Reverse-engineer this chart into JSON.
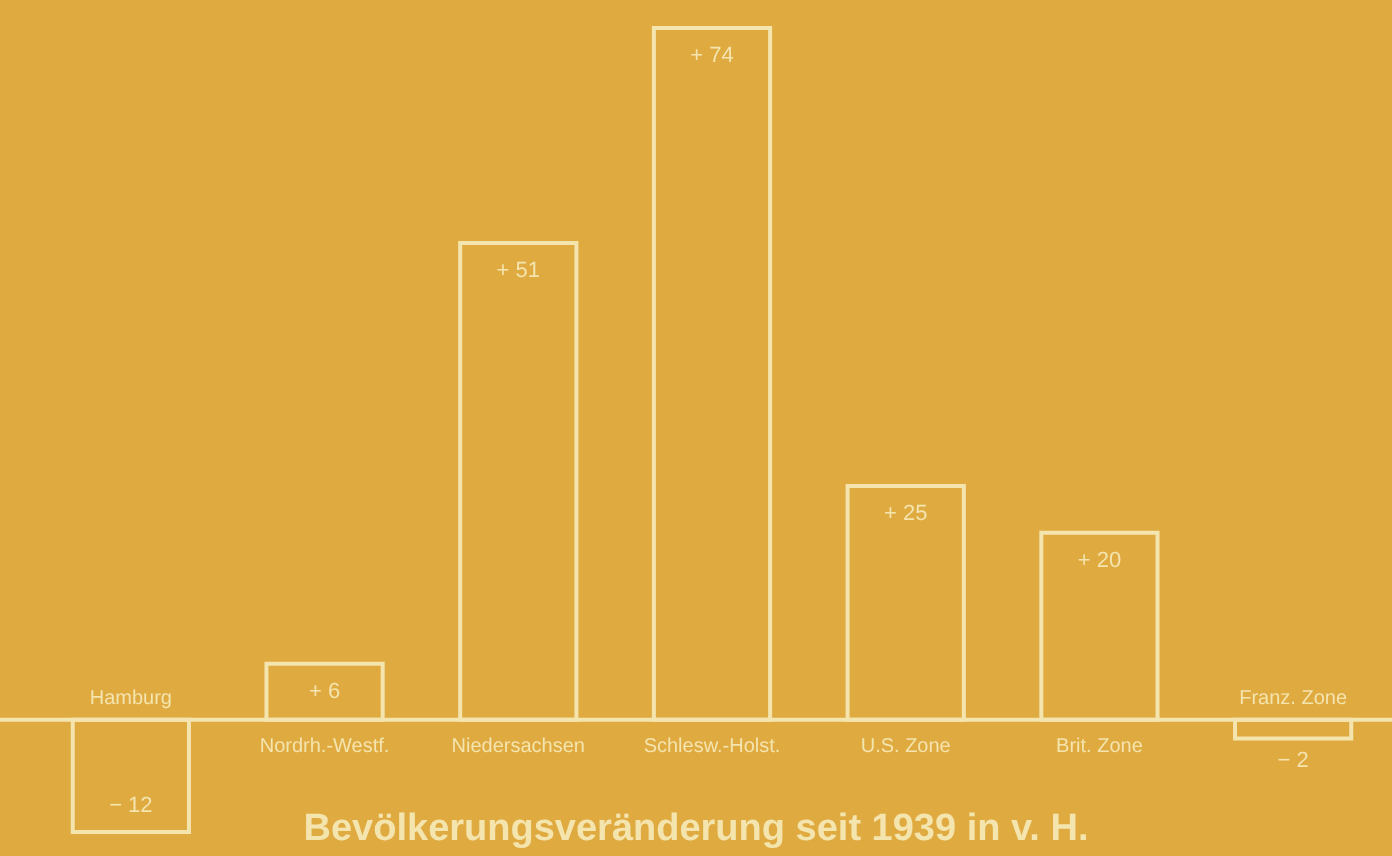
{
  "chart_data": {
    "type": "bar",
    "title": "Bevölkerungsveränderung seit 1939 in v. H.",
    "categories": [
      "Hamburg",
      "Nordrh.-Westf.",
      "Niedersachsen",
      "Schlesw.-Holst.",
      "U.S. Zone",
      "Brit. Zone",
      "Franz. Zone"
    ],
    "values": [
      -12,
      6,
      51,
      74,
      25,
      20,
      -2
    ],
    "value_labels": [
      "− 12",
      "+ 6",
      "+ 51",
      "+ 74",
      "+ 25",
      "+ 20",
      "− 2"
    ],
    "color": "#f4e4ae"
  }
}
